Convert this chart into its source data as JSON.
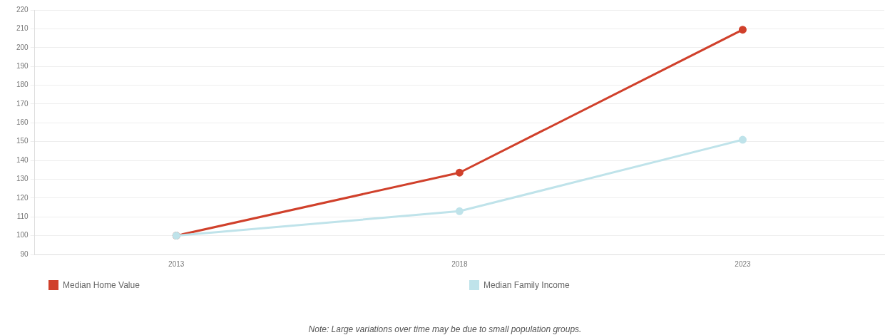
{
  "chart_data": {
    "type": "line",
    "categories": [
      "2013",
      "2018",
      "2023"
    ],
    "series": [
      {
        "name": "Median Home Value",
        "color": "#d0402b",
        "values": [
          100,
          133.5,
          209.5
        ]
      },
      {
        "name": "Median Family Income",
        "color": "#bfe3ea",
        "values": [
          100,
          113,
          151
        ]
      }
    ],
    "ylim": [
      90,
      220
    ],
    "yticks": [
      90,
      100,
      110,
      120,
      130,
      140,
      150,
      160,
      170,
      180,
      190,
      200,
      210,
      220
    ],
    "grid": "y",
    "legend": "bottom",
    "marker": "circle",
    "line_style": "solid",
    "annotations": [
      "Note: Large variations over time may be due to small population groups."
    ]
  }
}
